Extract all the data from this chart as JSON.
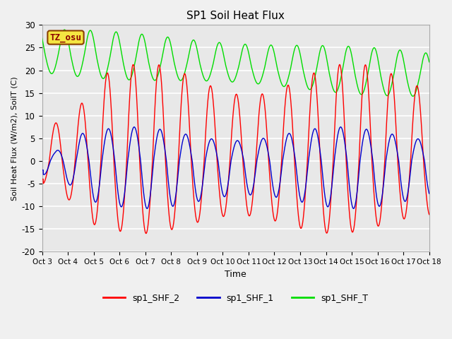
{
  "title": "SP1 Soil Heat Flux",
  "xlabel": "Time",
  "ylabel": "Soil Heat Flux (W/m2), SoilT (C)",
  "ylim": [
    -20,
    30
  ],
  "xlim": [
    0,
    15
  ],
  "xtick_labels": [
    "Oct 3",
    "Oct 4",
    "Oct 5",
    "Oct 6",
    "Oct 7",
    "Oct 8",
    "Oct 9",
    "Oct 10",
    "Oct 11",
    "Oct 12",
    "Oct 13",
    "Oct 14",
    "Oct 15",
    "Oct 16",
    "Oct 17",
    "Oct 18"
  ],
  "xtick_positions": [
    0,
    1,
    2,
    3,
    4,
    5,
    6,
    7,
    8,
    9,
    10,
    11,
    12,
    13,
    14,
    15
  ],
  "ytick_labels": [
    "-20",
    "-15",
    "-10",
    "-5",
    "0",
    "5",
    "10",
    "15",
    "20",
    "25",
    "30"
  ],
  "ytick_positions": [
    -20,
    -15,
    -10,
    -5,
    0,
    5,
    10,
    15,
    20,
    25,
    30
  ],
  "color_red": "#ff0000",
  "color_blue": "#0000cc",
  "color_green": "#00dd00",
  "bg_color": "#e8e8e8",
  "fig_color": "#f0f0f0",
  "label_red": "sp1_SHF_2",
  "label_blue": "sp1_SHF_1",
  "label_green": "sp1_SHF_T",
  "tz_label": "TZ_osu",
  "grid_color": "#ffffff",
  "n_points": 3000
}
